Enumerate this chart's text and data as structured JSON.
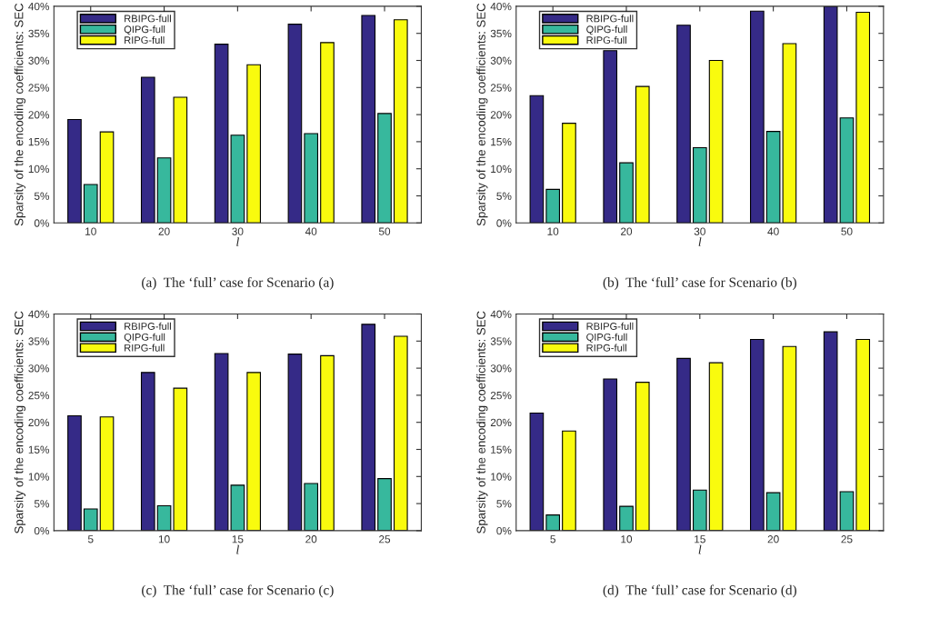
{
  "chart_data": [
    {
      "type": "bar",
      "title": "(a)  The ‘full’ case for Scenario (a)",
      "xlabel": "l",
      "ylabel": "Sparsity of the encoding coefficients: SEC",
      "categories": [
        "10",
        "20",
        "30",
        "40",
        "50"
      ],
      "series": [
        {
          "name": "RBIPG-full",
          "color": "#352a87",
          "values": [
            19.1,
            26.9,
            33,
            36.7,
            38.3
          ]
        },
        {
          "name": "QIPG-full",
          "color": "#37b89d",
          "values": [
            7.1,
            12,
            16.2,
            16.5,
            20.2
          ]
        },
        {
          "name": "RIPG-full",
          "color": "#f9fb0e",
          "values": [
            16.8,
            23.2,
            29.2,
            33.3,
            37.5
          ]
        }
      ],
      "ylim": [
        0,
        40
      ],
      "yticks": [
        {
          "value": 0,
          "label": "0%"
        },
        {
          "value": 5,
          "label": "5%"
        },
        {
          "value": 10,
          "label": "10%"
        },
        {
          "value": 15,
          "label": "15%"
        },
        {
          "value": 20,
          "label": "20%"
        },
        {
          "value": 25,
          "label": "25%"
        },
        {
          "value": 30,
          "label": "30%"
        },
        {
          "value": 35,
          "label": "35%"
        },
        {
          "value": 40,
          "label": "40%"
        }
      ],
      "grid": false,
      "legend": "top left"
    },
    {
      "type": "bar",
      "title": "(b)  The ‘full’ case for Scenario (b)",
      "xlabel": "l",
      "ylabel": "Sparsity of the encoding coefficients: SEC",
      "categories": [
        "10",
        "20",
        "30",
        "40",
        "50"
      ],
      "series": [
        {
          "name": "RBIPG-full",
          "color": "#352a87",
          "values": [
            23.5,
            31.8,
            36.5,
            39.1,
            40
          ]
        },
        {
          "name": "QIPG-full",
          "color": "#37b89d",
          "values": [
            6.2,
            11.1,
            13.9,
            16.9,
            19.4
          ]
        },
        {
          "name": "RIPG-full",
          "color": "#f9fb0e",
          "values": [
            18.4,
            25.2,
            30,
            33.1,
            38.9
          ]
        }
      ],
      "ylim": [
        0,
        40
      ],
      "yticks": [
        {
          "value": 0,
          "label": "0%"
        },
        {
          "value": 5,
          "label": "5%"
        },
        {
          "value": 10,
          "label": "10%"
        },
        {
          "value": 15,
          "label": "15%"
        },
        {
          "value": 20,
          "label": "20%"
        },
        {
          "value": 25,
          "label": "25%"
        },
        {
          "value": 30,
          "label": "30%"
        },
        {
          "value": 35,
          "label": "35%"
        },
        {
          "value": 40,
          "label": "40%"
        }
      ],
      "grid": false,
      "legend": "top left"
    },
    {
      "type": "bar",
      "title": "(c)  The ‘full’ case for Scenario (c)",
      "xlabel": "l",
      "ylabel": "Sparsity of the encoding coefficients: SEC",
      "categories": [
        "5",
        "10",
        "15",
        "20",
        "25"
      ],
      "series": [
        {
          "name": "RBIPG-full",
          "color": "#352a87",
          "values": [
            21.2,
            29.2,
            32.7,
            32.6,
            38.1
          ]
        },
        {
          "name": "QIPG-full",
          "color": "#37b89d",
          "values": [
            4,
            4.6,
            8.4,
            8.7,
            9.6
          ]
        },
        {
          "name": "RIPG-full",
          "color": "#f9fb0e",
          "values": [
            21,
            26.3,
            29.2,
            32.3,
            35.9
          ]
        }
      ],
      "ylim": [
        0,
        40
      ],
      "yticks": [
        {
          "value": 0,
          "label": "0%"
        },
        {
          "value": 5,
          "label": "5%"
        },
        {
          "value": 10,
          "label": "10%"
        },
        {
          "value": 15,
          "label": "15%"
        },
        {
          "value": 20,
          "label": "20%"
        },
        {
          "value": 25,
          "label": "25%"
        },
        {
          "value": 30,
          "label": "30%"
        },
        {
          "value": 35,
          "label": "35%"
        },
        {
          "value": 40,
          "label": "40%"
        }
      ],
      "grid": false,
      "legend": "top left"
    },
    {
      "type": "bar",
      "title": "(d)  The ‘full’ case for Scenario (d)",
      "xlabel": "l",
      "ylabel": "Sparsity of the encoding coefficients: SEC",
      "categories": [
        "5",
        "10",
        "15",
        "20",
        "25"
      ],
      "series": [
        {
          "name": "RBIPG-full",
          "color": "#352a87",
          "values": [
            21.7,
            28,
            31.8,
            35.3,
            36.7
          ]
        },
        {
          "name": "QIPG-full",
          "color": "#37b89d",
          "values": [
            2.9,
            4.5,
            7.5,
            7,
            7.2
          ]
        },
        {
          "name": "RIPG-full",
          "color": "#f9fb0e",
          "values": [
            18.4,
            27.4,
            31,
            34,
            35.3
          ]
        }
      ],
      "ylim": [
        0,
        40
      ],
      "yticks": [
        {
          "value": 0,
          "label": "0%"
        },
        {
          "value": 5,
          "label": "5%"
        },
        {
          "value": 10,
          "label": "10%"
        },
        {
          "value": 15,
          "label": "15%"
        },
        {
          "value": 20,
          "label": "20%"
        },
        {
          "value": 25,
          "label": "25%"
        },
        {
          "value": 30,
          "label": "30%"
        },
        {
          "value": 35,
          "label": "35%"
        },
        {
          "value": 40,
          "label": "40%"
        }
      ],
      "grid": false,
      "legend": "top left"
    }
  ]
}
